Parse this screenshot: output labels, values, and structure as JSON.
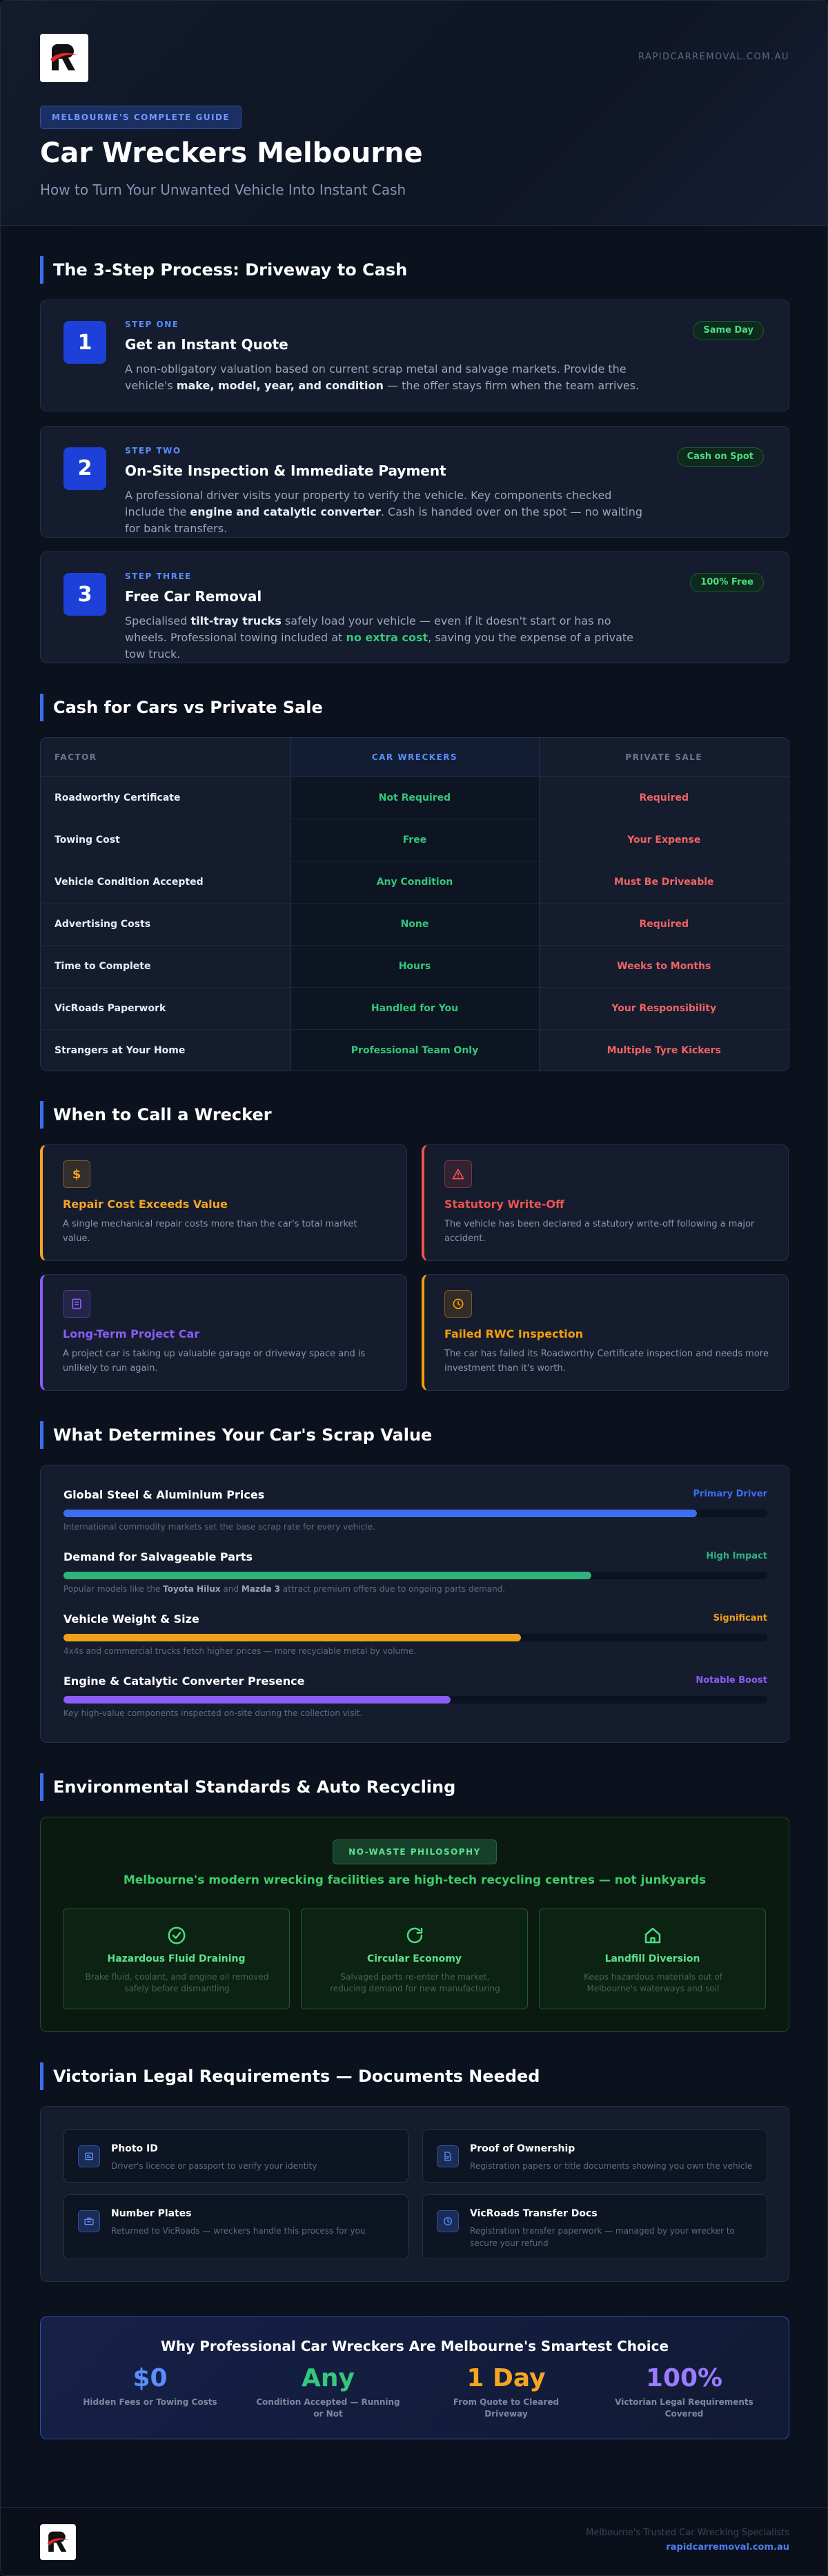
{
  "header": {
    "site": "RAPIDCARREMOVAL.COM.AU",
    "badge": "MELBOURNE'S COMPLETE GUIDE",
    "title": "Car Wreckers Melbourne",
    "subtitle": "How to Turn Your Unwanted Vehicle Into Instant Cash"
  },
  "steps": {
    "heading": "The 3-Step Process: Driveway to Cash",
    "items": [
      {
        "number": 1,
        "label": "STEP ONE",
        "title": "Get an Instant Quote",
        "badge": "Same Day",
        "desc": [
          {
            "t": "A non-obligatory valuation based on current scrap metal and salvage markets. Provide the vehicle's "
          },
          {
            "t": "make, model, year, and condition",
            "s": "b"
          },
          {
            "t": " — the offer stays firm when the team arrives."
          }
        ]
      },
      {
        "number": 2,
        "label": "STEP TWO",
        "title": "On-Site Inspection & Immediate Payment",
        "badge": "Cash on Spot",
        "desc": [
          {
            "t": "A professional driver visits your property to verify the vehicle. Key components checked include the "
          },
          {
            "t": "engine and catalytic converter",
            "s": "b"
          },
          {
            "t": ". Cash is handed over on the spot — no waiting for bank transfers."
          }
        ]
      },
      {
        "number": 3,
        "label": "STEP THREE",
        "title": "Free Car Removal",
        "badge": "100% Free",
        "desc": [
          {
            "t": "Specialised "
          },
          {
            "t": "tilt-tray trucks",
            "s": "b"
          },
          {
            "t": " safely load your vehicle — even if it doesn't start or has no wheels. Professional towing included at "
          },
          {
            "t": "no extra cost",
            "s": "g"
          },
          {
            "t": ", saving you the expense of a private tow truck."
          }
        ]
      }
    ]
  },
  "comparison": {
    "heading": "Cash for Cars vs Private Sale",
    "columns": [
      "FACTOR",
      "CAR WRECKERS",
      "PRIVATE SALE"
    ],
    "rows": [
      [
        "Roadworthy Certificate",
        "Not Required",
        "Required"
      ],
      [
        "Towing Cost",
        "Free",
        "Your Expense"
      ],
      [
        "Vehicle Condition Accepted",
        "Any Condition",
        "Must Be Driveable"
      ],
      [
        "Advertising Costs",
        "None",
        "Required"
      ],
      [
        "Time to Complete",
        "Hours",
        "Weeks to Months"
      ],
      [
        "VicRoads Paperwork",
        "Handled for You",
        "Your Responsibility"
      ],
      [
        "Strangers at Your Home",
        "Professional Team Only",
        "Multiple Tyre Kickers"
      ]
    ]
  },
  "when": {
    "heading": "When to Call a Wrecker",
    "cards": [
      {
        "icon": "$",
        "title": "Repair Cost Exceeds Value",
        "desc": "A single mechanical repair costs more than the car's total market value.",
        "color": "#f5a524"
      },
      {
        "title": "Statutory Write-Off",
        "desc": "The vehicle has been declared a statutory write-off following a major accident.",
        "color": "#ef5350"
      },
      {
        "title": "Long-Term Project Car",
        "desc": "A project car is taking up valuable garage or driveway space and is unlikely to run again.",
        "color": "#8b5cf6"
      },
      {
        "title": "Failed RWC Inspection",
        "desc": "The car has failed its Roadworthy Certificate inspection and needs more investment than it's worth.",
        "color": "#f59e0b"
      }
    ]
  },
  "factors": {
    "heading": "What Determines Your Car's Scrap Value",
    "items": [
      {
        "title": "Global Steel & Aluminium Prices",
        "tag": "Primary Driver",
        "level": 90,
        "color": "#3b6ff0",
        "desc": [
          {
            "t": "International commodity markets set the base scrap rate for every vehicle."
          }
        ]
      },
      {
        "title": "Demand for Salvageable Parts",
        "tag": "High Impact",
        "level": 75,
        "color": "#2fb37a",
        "desc": [
          {
            "t": "Popular models like the "
          },
          {
            "t": "Toyota Hilux",
            "s": "b"
          },
          {
            "t": " and "
          },
          {
            "t": "Mazda 3",
            "s": "b"
          },
          {
            "t": " attract premium offers due to ongoing parts demand."
          }
        ]
      },
      {
        "title": "Vehicle Weight & Size",
        "tag": "Significant",
        "level": 65,
        "color": "#f0a019",
        "desc": [
          {
            "t": "4x4s and commercial trucks fetch higher prices — more recyclable metal by volume."
          }
        ]
      },
      {
        "title": "Engine & Catalytic Converter Presence",
        "tag": "Notable Boost",
        "level": 55,
        "color": "#8b5cf6",
        "desc": [
          {
            "t": "Key high-value components inspected on-site during the collection visit."
          }
        ]
      }
    ]
  },
  "environment": {
    "heading": "Environmental Standards & Auto Recycling",
    "badge": "NO-WASTE PHILOSOPHY",
    "tagline": "Melbourne's modern wrecking facilities are high-tech recycling centres — not junkyards",
    "items": [
      {
        "title": "Hazardous Fluid Draining",
        "desc": "Brake fluid, coolant, and engine oil removed safely before dismantling"
      },
      {
        "title": "Circular Economy",
        "desc": "Salvaged parts re-enter the market, reducing demand for new manufacturing"
      },
      {
        "title": "Landfill Diversion",
        "desc": "Keeps hazardous materials out of Melbourne's waterways and soil"
      }
    ]
  },
  "legal": {
    "heading": "Victorian Legal Requirements — Documents Needed",
    "items": [
      {
        "title": "Photo ID",
        "desc": "Driver's licence or passport to verify your identity"
      },
      {
        "title": "Proof of Ownership",
        "desc": "Registration papers or title documents showing you own the vehicle"
      },
      {
        "title": "Number Plates",
        "desc": "Returned to VicRoads — wreckers handle this process for you"
      },
      {
        "title": "VicRoads Transfer Docs",
        "desc": "Registration transfer paperwork — managed by your wrecker to secure your refund"
      }
    ]
  },
  "summary": {
    "title": "Why Professional Car Wreckers Are Melbourne's Smartest Choice",
    "stats": [
      {
        "value": "$0",
        "label": "Hidden Fees or Towing Costs",
        "color": "#5b8dff"
      },
      {
        "value": "Any",
        "label": "Condition Accepted — Running or Not",
        "color": "#34c77b"
      },
      {
        "value": "1 Day",
        "label": "From Quote to Cleared Driveway",
        "color": "#f5a524"
      },
      {
        "value": "100%",
        "label": "Victorian Legal Requirements Covered",
        "color": "#9b7bff"
      }
    ]
  },
  "footer": {
    "tagline": "Melbourne's Trusted Car Wrecking Specialists",
    "site": "rapidcarremoval.com.au"
  }
}
